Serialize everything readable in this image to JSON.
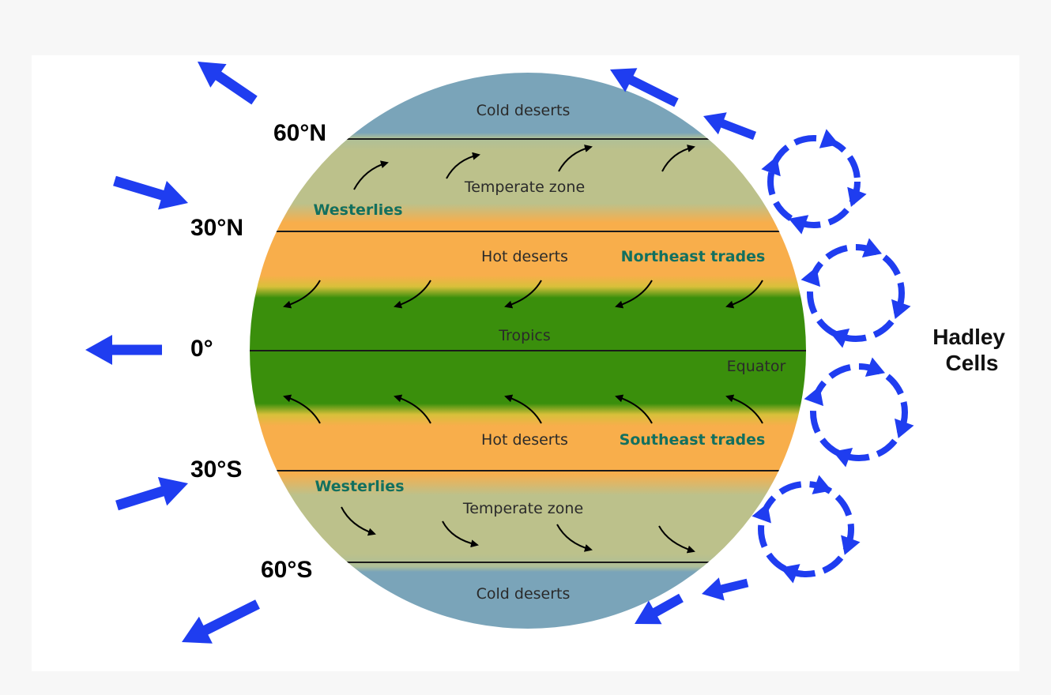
{
  "colors": {
    "cold": "#7aa4b9",
    "temperate": "#bcc18b",
    "hot": "#f8ae4b",
    "tropics": "#3a8f0c",
    "arrow_blue": "#1f3df0",
    "wind_text": "#12705f"
  },
  "latitudes": {
    "n60": "60°N",
    "n30": "30°N",
    "eq": "0°",
    "s30": "30°S",
    "s60": "60°S"
  },
  "zones": {
    "cold_north": "Cold deserts",
    "temperate_north": "Temperate zone",
    "hot_north": "Hot deserts",
    "tropics": "Tropics",
    "equator": "Equator",
    "hot_south": "Hot deserts",
    "temperate_south": "Temperate zone",
    "cold_south": "Cold deserts"
  },
  "winds": {
    "westerlies_north": "Westerlies",
    "northeast_trades": "Northeast trades",
    "southeast_trades": "Southeast trades",
    "westerlies_south": "Westerlies"
  },
  "hadley": {
    "line1": "Hadley",
    "line2": "Cells"
  }
}
